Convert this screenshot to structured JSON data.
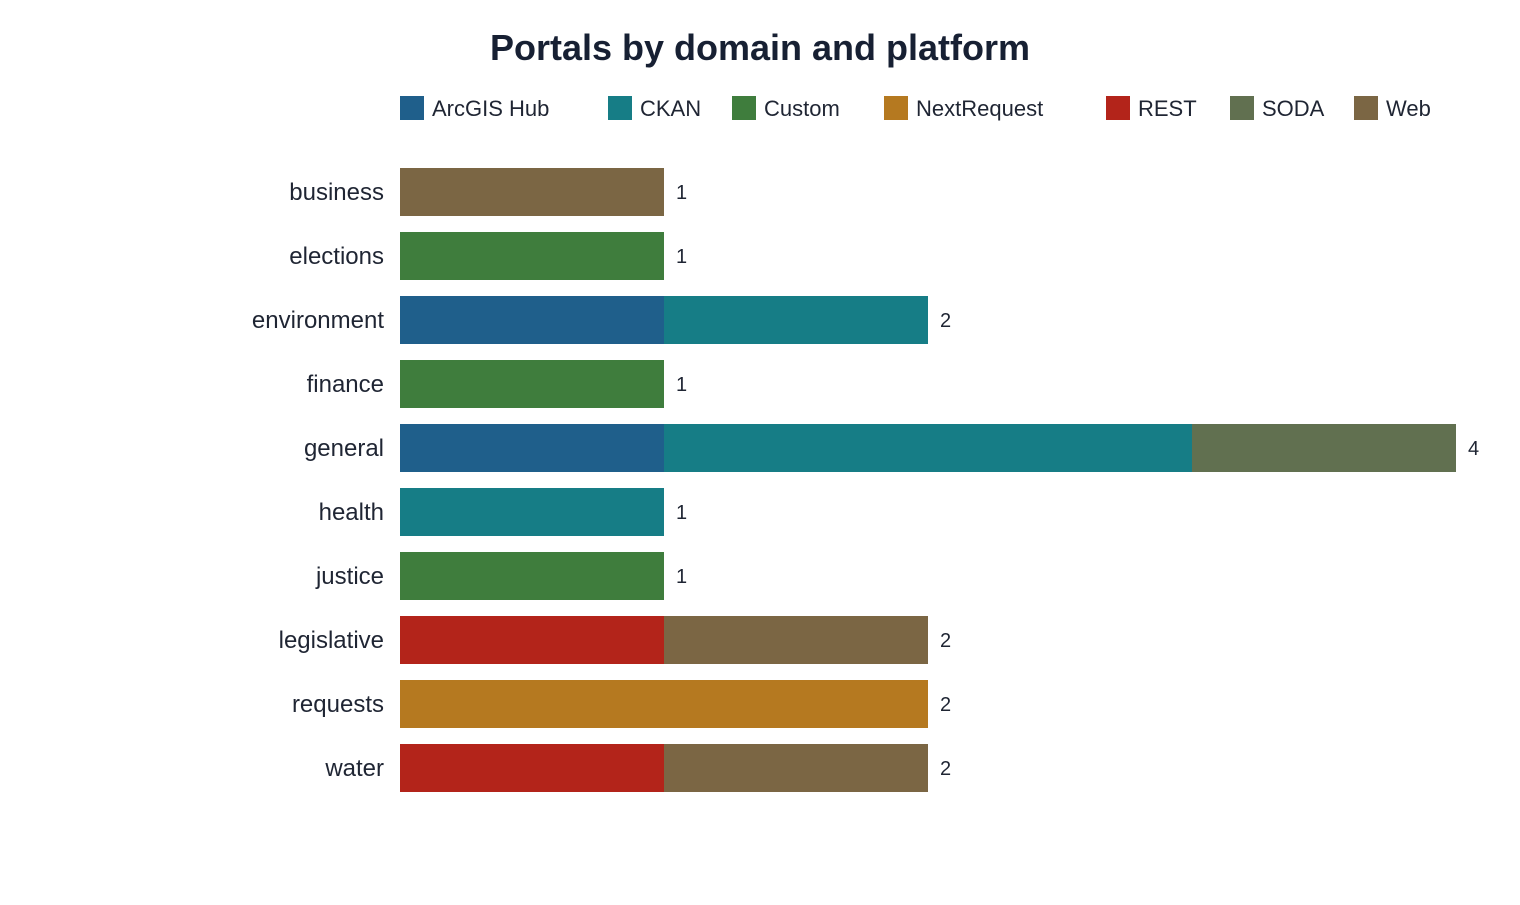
{
  "chart_data": {
    "type": "bar",
    "orientation": "horizontal",
    "stacked": true,
    "title": "Portals by domain and platform",
    "xlabel": "",
    "ylabel": "",
    "xlim": [
      0,
      4
    ],
    "grid": false,
    "legend_position": "top",
    "categories": [
      "business",
      "elections",
      "environment",
      "finance",
      "general",
      "health",
      "justice",
      "legislative",
      "requests",
      "water"
    ],
    "series": [
      {
        "name": "ArcGIS Hub",
        "color": "#1f5f8b",
        "values": [
          0,
          0,
          1,
          0,
          1,
          0,
          0,
          0,
          0,
          0
        ]
      },
      {
        "name": "CKAN",
        "color": "#167d86",
        "values": [
          0,
          0,
          1,
          0,
          2,
          1,
          0,
          0,
          0,
          0
        ]
      },
      {
        "name": "Custom",
        "color": "#3f7d3d",
        "values": [
          0,
          1,
          0,
          1,
          0,
          0,
          1,
          0,
          0,
          0
        ]
      },
      {
        "name": "NextRequest",
        "color": "#b57920",
        "values": [
          0,
          0,
          0,
          0,
          0,
          0,
          0,
          0,
          2,
          0
        ]
      },
      {
        "name": "REST",
        "color": "#b3241a",
        "values": [
          0,
          0,
          0,
          0,
          0,
          0,
          0,
          1,
          0,
          1
        ]
      },
      {
        "name": "SODA",
        "color": "#617050",
        "values": [
          0,
          0,
          0,
          0,
          1,
          0,
          0,
          0,
          0,
          0
        ]
      },
      {
        "name": "Web",
        "color": "#7b6644",
        "values": [
          1,
          0,
          0,
          0,
          0,
          0,
          0,
          1,
          0,
          1
        ]
      }
    ],
    "totals": [
      "1",
      "1",
      "2",
      "1",
      "4",
      "1",
      "1",
      "2",
      "2",
      "2"
    ]
  }
}
